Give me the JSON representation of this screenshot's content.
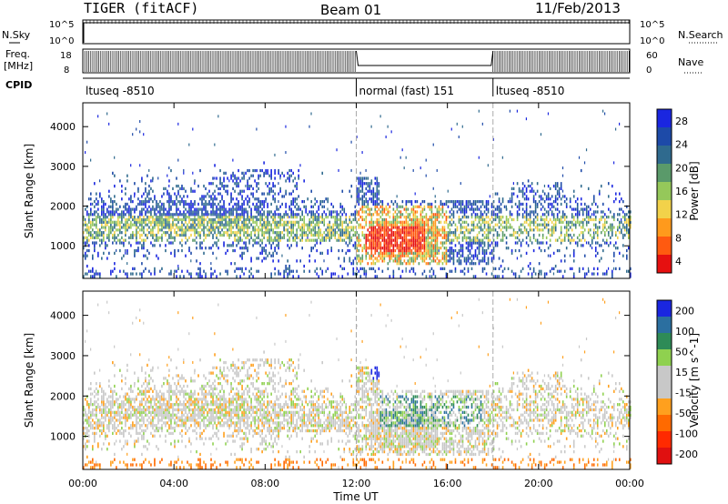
{
  "header": {
    "radar": "TIGER (fitACF)",
    "beam": "Beam 01",
    "date": "11/Feb/2013"
  },
  "panels": {
    "nsky_label": "N.Sky",
    "nsearch_label": "N.Search",
    "freq_label_1": "Freq.",
    "freq_label_2": "[MHz]",
    "nave_label": "Nave",
    "cpid_label": "CPID",
    "nsky_ticks": [
      "10^5",
      "10^0"
    ],
    "nsearch_ticks": [
      "10^5",
      "10^0"
    ],
    "freq_ticks": [
      "18",
      "8"
    ],
    "nave_ticks": [
      "60",
      "0"
    ]
  },
  "cpid_segments": [
    {
      "label": "ltuseq -8510",
      "start_hour": 0,
      "end_hour": 12
    },
    {
      "label": "normal (fast) 151",
      "start_hour": 12,
      "end_hour": 18
    },
    {
      "label": "ltuseq -8510",
      "start_hour": 18,
      "end_hour": 24
    }
  ],
  "colors": {
    "power": [
      "#1a26e0",
      "#1d4aa8",
      "#2f6a8e",
      "#5a9a6a",
      "#95c85a",
      "#f2d24a",
      "#ff9a1c",
      "#ff5a10",
      "#e61010"
    ],
    "velocity": [
      "#1a26e0",
      "#2b6fa0",
      "#2e8b57",
      "#8fd14f",
      "#c8c8c8",
      "#c8c8c8",
      "#ffa01e",
      "#ff6a00",
      "#ff2a00",
      "#e01010"
    ]
  },
  "chart_data": [
    {
      "type": "heatmap",
      "name": "power",
      "title": "",
      "xlabel": "Time UT",
      "ylabel": "Slant Range [km]",
      "xlim_hours": [
        0,
        24
      ],
      "ylim": [
        180,
        4600
      ],
      "x_tick_labels": [
        "00:00",
        "04:00",
        "08:00",
        "12:00",
        "16:00",
        "20:00",
        "00:00"
      ],
      "y_tick_labels": [
        "1000",
        "2000",
        "3000",
        "4000"
      ],
      "colorbar_label": "Power [dB]",
      "colorbar_ticks": [
        "28",
        "24",
        "20",
        "16",
        "12",
        "8",
        "4"
      ],
      "colorbar_range": [
        0,
        30
      ]
    },
    {
      "type": "heatmap",
      "name": "velocity",
      "title": "",
      "xlabel": "Time UT",
      "ylabel": "Slant Range [km]",
      "xlim_hours": [
        0,
        24
      ],
      "ylim": [
        180,
        4600
      ],
      "x_tick_labels": [
        "00:00",
        "04:00",
        "08:00",
        "12:00",
        "16:00",
        "20:00",
        "00:00"
      ],
      "y_tick_labels": [
        "1000",
        "2000",
        "3000",
        "4000"
      ],
      "colorbar_label": "Velocity [m s^-1]",
      "colorbar_ticks": [
        "200",
        "100",
        "50",
        "15",
        "-15",
        "-50",
        "-100",
        "-200"
      ],
      "colorbar_range": [
        -250,
        250
      ]
    }
  ]
}
